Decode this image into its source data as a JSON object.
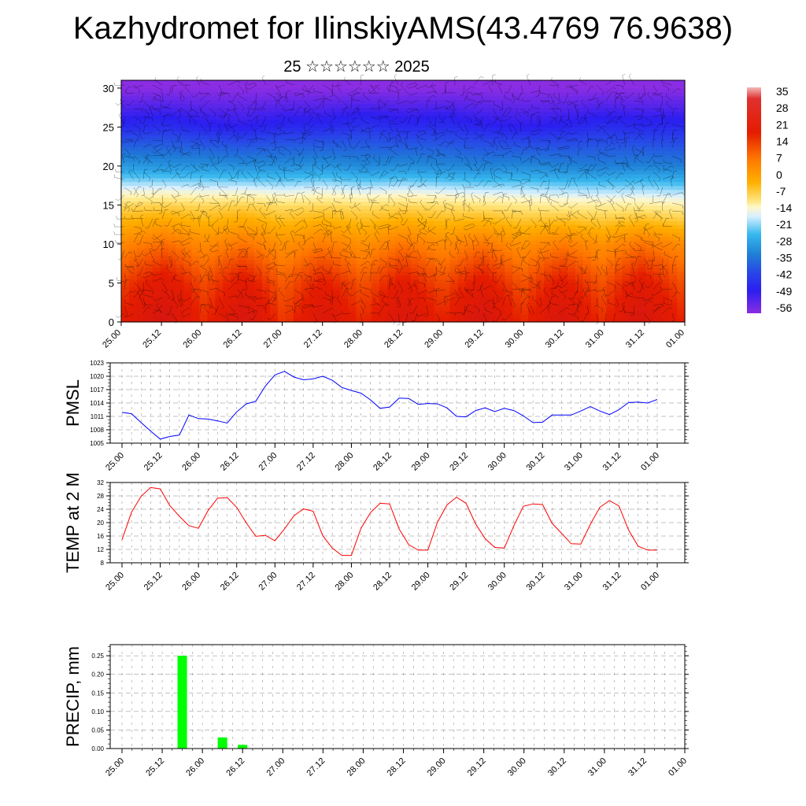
{
  "title": "Kazhydromet for IlinskiyAMS(43.4769 76.9638)",
  "subtitle": "25 ☆☆☆☆☆☆ 2025",
  "colors": {
    "pmsl_line": "#0000ff",
    "temp_line": "#ff0000",
    "precip_bar": "#00ff00",
    "frame": "#000000"
  },
  "chart_data": [
    {
      "id": "temperature_profile",
      "type": "heatmap",
      "title": "",
      "xlabel": "",
      "ylabel": "",
      "x_tick_labels": [
        "25.00",
        "25.12",
        "26.00",
        "26.12",
        "27.00",
        "27.12",
        "28.00",
        "28.12",
        "29.00",
        "29.12",
        "30.00",
        "30.12",
        "31.00",
        "31.12",
        "01.00"
      ],
      "y_ticks": [
        0,
        5,
        10,
        15,
        20,
        25,
        30
      ],
      "ylim": [
        0,
        31
      ],
      "colorbar": {
        "labels": [
          "35",
          "28",
          "21",
          "14",
          "7",
          "0",
          "-7",
          "-14",
          "-21",
          "-28",
          "-35",
          "-42",
          "-49",
          "-56"
        ],
        "range": [
          -60,
          38
        ]
      },
      "overlay": "wind barbs",
      "levels_z": [
        0,
        5,
        10,
        15,
        20,
        25,
        30
      ],
      "values_by_level": [
        [
          24,
          36,
          20,
          34,
          18,
          31,
          20,
          33,
          21,
          35,
          20,
          33,
          20,
          34,
          22
        ],
        [
          18,
          26,
          16,
          25,
          14,
          23,
          15,
          24,
          16,
          25,
          15,
          24,
          15,
          25,
          16
        ],
        [
          8,
          12,
          7,
          11,
          6,
          10,
          6,
          11,
          7,
          11,
          6,
          10,
          6,
          11,
          7
        ],
        [
          -6,
          -5,
          -6,
          -5,
          -7,
          -6,
          -7,
          -6,
          -7,
          -8,
          -9,
          -10,
          -10,
          -10,
          -11
        ],
        [
          -30,
          -31,
          -31,
          -32,
          -32,
          -31,
          -33,
          -32,
          -33,
          -34,
          -33,
          -34,
          -35,
          -34,
          -35
        ],
        [
          -50,
          -49,
          -51,
          -52,
          -50,
          -50,
          -48,
          -50,
          -49,
          -51,
          -52,
          -51,
          -49,
          -50,
          -50
        ],
        [
          -60,
          -60,
          -60,
          -60,
          -60,
          -60,
          -60,
          -60,
          -60,
          -60,
          -60,
          -60,
          -60,
          -60,
          -60
        ]
      ]
    },
    {
      "id": "pmsl",
      "type": "line",
      "ylabel": "PMSL",
      "y_ticks": [
        1005,
        1008,
        1011,
        1014,
        1017,
        1020,
        1023
      ],
      "ylim": [
        1005,
        1023
      ],
      "x_tick_labels": [
        "25.00",
        "25.12",
        "26.00",
        "26.12",
        "27.00",
        "27.12",
        "28.00",
        "28.12",
        "29.00",
        "29.12",
        "30.00",
        "30.12",
        "31.00",
        "31.12",
        "01.00"
      ],
      "x": [
        0,
        3,
        6,
        9,
        12,
        15,
        18,
        21,
        24,
        27,
        30,
        33,
        36,
        39,
        42,
        45,
        48,
        51,
        54,
        57,
        60,
        63,
        66,
        69,
        72,
        75,
        78,
        81,
        84,
        87,
        90,
        93,
        96,
        99,
        102,
        105,
        108,
        111,
        114,
        117,
        120,
        123,
        126,
        129,
        132,
        135,
        138,
        141,
        144,
        147,
        150,
        153,
        156,
        159,
        162,
        165,
        168
      ],
      "values": [
        1011.9,
        1011.6,
        1009.6,
        1007.7,
        1005.9,
        1006.5,
        1006.8,
        1011.3,
        1010.5,
        1010.4,
        1010.0,
        1009.5,
        1012.0,
        1013.8,
        1014.4,
        1017.8,
        1020.3,
        1021.1,
        1019.8,
        1019.2,
        1019.4,
        1020.0,
        1019.1,
        1017.5,
        1016.8,
        1016.2,
        1014.7,
        1012.8,
        1013.1,
        1015.1,
        1015.0,
        1013.7,
        1013.9,
        1013.8,
        1012.9,
        1011.0,
        1010.9,
        1012.3,
        1012.9,
        1012.1,
        1012.8,
        1012.3,
        1011.1,
        1009.6,
        1009.7,
        1011.3,
        1011.3,
        1011.3,
        1012.2,
        1013.2,
        1012.2,
        1011.4,
        1012.5,
        1014.1,
        1014.2,
        1014.0,
        1014.8
      ]
    },
    {
      "id": "temp2m",
      "type": "line",
      "ylabel": "TEMP at 2 M",
      "y_ticks": [
        8,
        12,
        16,
        20,
        24,
        28,
        32
      ],
      "ylim": [
        8,
        32
      ],
      "x_tick_labels": [
        "25.00",
        "25.12",
        "26.00",
        "26.12",
        "27.00",
        "27.12",
        "28.00",
        "28.12",
        "29.00",
        "29.12",
        "30.00",
        "30.12",
        "31.00",
        "31.12",
        "01.00"
      ],
      "x": [
        0,
        3,
        6,
        9,
        12,
        15,
        18,
        21,
        24,
        27,
        30,
        33,
        36,
        39,
        42,
        45,
        48,
        51,
        54,
        57,
        60,
        63,
        66,
        69,
        72,
        75,
        78,
        81,
        84,
        87,
        90,
        93,
        96,
        99,
        102,
        105,
        108,
        111,
        114,
        117,
        120,
        123,
        126,
        129,
        132,
        135,
        138,
        141,
        144,
        147,
        150,
        153,
        156,
        159,
        162,
        165,
        168
      ],
      "values": [
        14.9,
        23.1,
        27.9,
        30.5,
        30.1,
        25.1,
        21.9,
        19.1,
        18.3,
        23.6,
        27.3,
        27.5,
        24.6,
        19.9,
        15.9,
        16.2,
        14.6,
        18.1,
        22.1,
        24.1,
        23.4,
        16.1,
        12.4,
        10.2,
        10.2,
        18.3,
        23.0,
        25.8,
        25.6,
        18.1,
        13.4,
        11.8,
        11.8,
        20.1,
        25.3,
        27.6,
        25.8,
        19.6,
        15.2,
        12.6,
        12.4,
        19.1,
        24.9,
        25.6,
        25.4,
        19.8,
        16.8,
        13.7,
        13.6,
        19.5,
        24.6,
        26.6,
        25.0,
        17.8,
        13.0,
        11.8,
        11.8
      ]
    },
    {
      "id": "precip",
      "type": "bar",
      "ylabel": "PRECIP, mm",
      "y_tick_labels": [
        "0.00",
        "0.05",
        "0.10",
        "0.15",
        "0.20",
        "0.25"
      ],
      "ylim": [
        0,
        0.28
      ],
      "x_tick_labels": [
        "25.00",
        "25.12",
        "26.00",
        "26.12",
        "27.00",
        "27.12",
        "28.00",
        "28.12",
        "29.00",
        "29.12",
        "30.00",
        "30.12",
        "31.00",
        "31.12",
        "01.00"
      ],
      "x": [
        18,
        30,
        36
      ],
      "values": [
        0.25,
        0.03,
        0.01
      ]
    }
  ]
}
